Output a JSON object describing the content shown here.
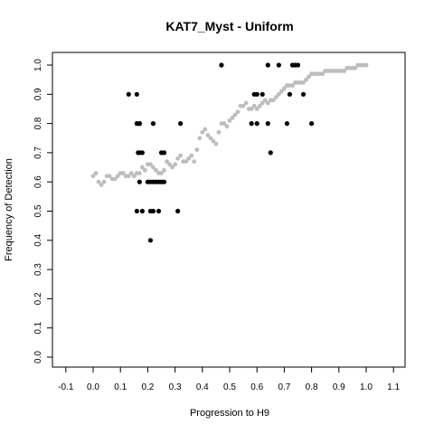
{
  "chart_data": {
    "type": "scatter",
    "title": "KAT7_Myst - Uniform",
    "xlabel": "Progression to H9",
    "ylabel": "Frequency of Detection",
    "xlim": [
      -0.1,
      1.1
    ],
    "ylim": [
      0.0,
      1.0
    ],
    "xticks": [
      "-0.1",
      "0.0",
      "0.1",
      "0.2",
      "0.3",
      "0.4",
      "0.5",
      "0.6",
      "0.7",
      "0.8",
      "0.9",
      "1.0",
      "1.1"
    ],
    "yticks": [
      "0.0",
      "0.1",
      "0.2",
      "0.3",
      "0.4",
      "0.5",
      "0.6",
      "0.7",
      "0.8",
      "0.9",
      "1.0"
    ],
    "grid": false,
    "series": [
      {
        "color": "#000000",
        "marker": "circle",
        "x": [
          0.13,
          0.16,
          0.17,
          0.16,
          0.17,
          0.17,
          0.165,
          0.18,
          0.16,
          0.18,
          0.17,
          0.2,
          0.21,
          0.22,
          0.22,
          0.23,
          0.24,
          0.25,
          0.26,
          0.21,
          0.22,
          0.24,
          0.21,
          0.25,
          0.26,
          0.31,
          0.32,
          0.47,
          0.58,
          0.59,
          0.6,
          0.62,
          0.6,
          0.64,
          0.64,
          0.65,
          0.68,
          0.71,
          0.72,
          0.73,
          0.74,
          0.75,
          0.77,
          0.8
        ],
        "y": [
          0.9,
          0.9,
          0.8,
          0.8,
          0.8,
          0.7,
          0.7,
          0.7,
          0.5,
          0.5,
          0.6,
          0.6,
          0.6,
          0.6,
          0.8,
          0.6,
          0.6,
          0.6,
          0.7,
          0.5,
          0.5,
          0.5,
          0.4,
          0.7,
          0.6,
          0.5,
          0.8,
          1.0,
          0.8,
          0.9,
          0.9,
          0.9,
          0.8,
          1.0,
          0.8,
          0.7,
          1.0,
          0.8,
          0.9,
          1.0,
          1.0,
          1.0,
          0.9,
          0.8
        ]
      },
      {
        "color": "#bdbdbd",
        "marker": "circle",
        "x": [
          0.0,
          0.01,
          0.02,
          0.03,
          0.04,
          0.05,
          0.06,
          0.07,
          0.08,
          0.09,
          0.1,
          0.11,
          0.12,
          0.13,
          0.14,
          0.15,
          0.16,
          0.17,
          0.18,
          0.19,
          0.2,
          0.21,
          0.22,
          0.23,
          0.24,
          0.25,
          0.26,
          0.27,
          0.28,
          0.29,
          0.3,
          0.31,
          0.32,
          0.33,
          0.34,
          0.35,
          0.36,
          0.37,
          0.38,
          0.39,
          0.4,
          0.41,
          0.42,
          0.43,
          0.44,
          0.45,
          0.46,
          0.47,
          0.48,
          0.49,
          0.5,
          0.51,
          0.52,
          0.53,
          0.54,
          0.55,
          0.56,
          0.57,
          0.58,
          0.59,
          0.6,
          0.61,
          0.62,
          0.63,
          0.64,
          0.65,
          0.66,
          0.67,
          0.68,
          0.69,
          0.7,
          0.71,
          0.72,
          0.73,
          0.74,
          0.75,
          0.76,
          0.77,
          0.78,
          0.79,
          0.8,
          0.81,
          0.82,
          0.83,
          0.84,
          0.85,
          0.86,
          0.87,
          0.88,
          0.89,
          0.9,
          0.91,
          0.92,
          0.93,
          0.94,
          0.95,
          0.96,
          0.97,
          0.98,
          0.99,
          1.0
        ],
        "y": [
          0.62,
          0.63,
          0.6,
          0.59,
          0.6,
          0.62,
          0.62,
          0.61,
          0.61,
          0.62,
          0.63,
          0.63,
          0.62,
          0.62,
          0.63,
          0.62,
          0.63,
          0.63,
          0.65,
          0.64,
          0.66,
          0.66,
          0.65,
          0.64,
          0.63,
          0.63,
          0.64,
          0.67,
          0.66,
          0.65,
          0.66,
          0.68,
          0.69,
          0.67,
          0.67,
          0.68,
          0.69,
          0.67,
          0.71,
          0.75,
          0.77,
          0.78,
          0.76,
          0.75,
          0.74,
          0.73,
          0.77,
          0.8,
          0.8,
          0.79,
          0.81,
          0.82,
          0.83,
          0.84,
          0.86,
          0.86,
          0.87,
          0.85,
          0.85,
          0.86,
          0.85,
          0.86,
          0.87,
          0.88,
          0.87,
          0.88,
          0.88,
          0.89,
          0.9,
          0.91,
          0.92,
          0.93,
          0.93,
          0.93,
          0.94,
          0.94,
          0.94,
          0.94,
          0.95,
          0.96,
          0.97,
          0.97,
          0.97,
          0.97,
          0.97,
          0.98,
          0.98,
          0.98,
          0.98,
          0.98,
          0.98,
          0.98,
          0.98,
          0.99,
          0.99,
          0.99,
          0.99,
          1.0,
          1.0,
          1.0,
          1.0
        ]
      }
    ]
  }
}
